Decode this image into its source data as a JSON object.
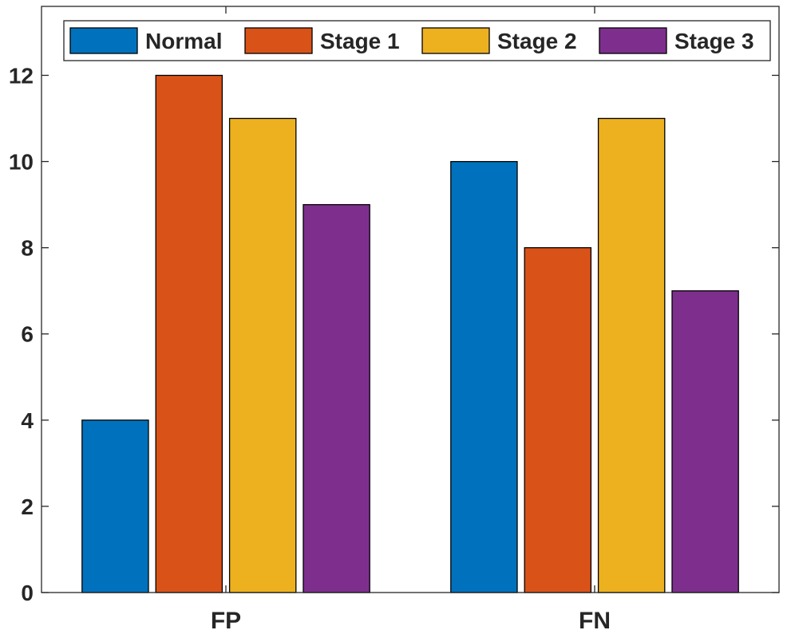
{
  "chart_data": {
    "type": "bar",
    "categories": [
      "FP",
      "FN"
    ],
    "series": [
      {
        "name": "Normal",
        "color": "#0072BD",
        "values": [
          4,
          10
        ]
      },
      {
        "name": "Stage 1",
        "color": "#D95319",
        "values": [
          12,
          8
        ]
      },
      {
        "name": "Stage 2",
        "color": "#EDB120",
        "values": [
          11,
          11
        ]
      },
      {
        "name": "Stage 3",
        "color": "#7E2F8E",
        "values": [
          9,
          7
        ]
      }
    ],
    "yticks": [
      0,
      2,
      4,
      6,
      8,
      10,
      12
    ],
    "ylim": [
      0,
      13.6
    ],
    "grid": false,
    "legend": "top, horizontal, inside axes"
  }
}
